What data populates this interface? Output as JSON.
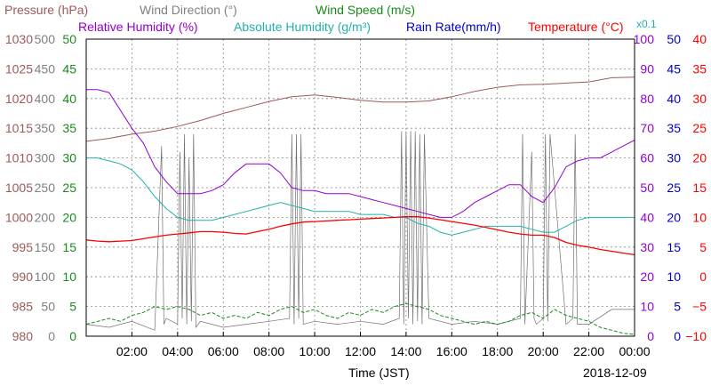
{
  "chart_data": {
    "type": "line",
    "date_label": "2018-12-09",
    "xlabel": "Time (JST)",
    "x_ticks": [
      "02:00",
      "04:00",
      "06:00",
      "08:00",
      "10:00",
      "12:00",
      "14:00",
      "16:00",
      "18:00",
      "20:00",
      "22:00",
      "00:00"
    ],
    "xlim": [
      "00:00",
      "24:00"
    ],
    "legend": [
      {
        "key": "pressure",
        "label": "Pressure (hPa)",
        "color": "#9b5a5a"
      },
      {
        "key": "wind_dir",
        "label": "Wind Direction (°)",
        "color": "#808080"
      },
      {
        "key": "wind_speed",
        "label": "Wind Speed (m/s)",
        "color": "#1a8a1a"
      },
      {
        "key": "rh",
        "label": "Relative Humidity (%)",
        "color": "#9400d3"
      },
      {
        "key": "ah",
        "label": "Absolute Humidity (g/m³)",
        "color": "#20b2aa"
      },
      {
        "key": "rain",
        "label": "Rain Rate(mm/h)",
        "color": "#0000cd"
      },
      {
        "key": "temp",
        "label": "Temperature (°C)",
        "color": "#ff0000"
      }
    ],
    "ah_scale_note": "x0.1",
    "axes": {
      "pressure": {
        "min": 980,
        "max": 1030,
        "step": 5,
        "ticks": [
          "1030",
          "1025",
          "1020",
          "1015",
          "1010",
          "1005",
          "1000",
          "995",
          "990",
          "985",
          "980"
        ],
        "color": "#9b5a5a"
      },
      "wind_dir": {
        "min": 0,
        "max": 500,
        "step": 50,
        "ticks": [
          "500",
          "450",
          "400",
          "350",
          "300",
          "250",
          "200",
          "150",
          "100",
          "50",
          "0"
        ],
        "color": "#808080"
      },
      "wind_speed": {
        "min": 0,
        "max": 50,
        "step": 5,
        "ticks": [
          "50",
          "45",
          "40",
          "35",
          "30",
          "25",
          "20",
          "15",
          "10",
          "5",
          "0"
        ],
        "color": "#1a8a1a"
      },
      "rh": {
        "min": 0,
        "max": 100,
        "step": 10,
        "ticks": [
          "100",
          "90",
          "80",
          "70",
          "60",
          "50",
          "40",
          "30",
          "20",
          "10",
          "0"
        ],
        "color": "#9400d3"
      },
      "rain": {
        "min": 0,
        "max": 50,
        "step": 5,
        "ticks": [
          "50",
          "45",
          "40",
          "35",
          "30",
          "25",
          "20",
          "15",
          "10",
          "5",
          "0"
        ],
        "color": "#0000cd"
      },
      "temp": {
        "min": -10,
        "max": 40,
        "step": 5,
        "ticks": [
          "40",
          "35",
          "30",
          "25",
          "20",
          "15",
          "10",
          "5",
          "0",
          "−5",
          "−10"
        ],
        "color": "#ff0000"
      }
    },
    "series": [
      {
        "key": "pressure",
        "name": "Pressure (hPa)",
        "axis": "pressure",
        "x": [
          0,
          1,
          2,
          3,
          4,
          5,
          6,
          7,
          8,
          9,
          10,
          11,
          12,
          13,
          14,
          15,
          16,
          17,
          18,
          19,
          20,
          21,
          22,
          23,
          24
        ],
        "y": [
          1012.8,
          1013.3,
          1014.0,
          1014.5,
          1015.3,
          1016.3,
          1017.5,
          1018.5,
          1019.5,
          1020.3,
          1020.6,
          1020.2,
          1019.7,
          1019.4,
          1019.4,
          1019.6,
          1020.3,
          1021.2,
          1021.9,
          1022.3,
          1022.4,
          1022.6,
          1022.8,
          1023.5,
          1023.6
        ]
      },
      {
        "key": "wind_dir",
        "name": "Wind Direction (°)",
        "axis": "wind_dir",
        "x": [
          0,
          1,
          2,
          3,
          3.3,
          3.4,
          3.5,
          4,
          4.1,
          4.2,
          4.3,
          4.4,
          4.5,
          4.6,
          4.7,
          4.8,
          4.9,
          5,
          6,
          7,
          8,
          8.9,
          9,
          9.1,
          9.2,
          9.3,
          9.4,
          9.5,
          10,
          11,
          12,
          13,
          13.7,
          13.8,
          13.9,
          14,
          14.1,
          14.2,
          14.3,
          14.4,
          14.5,
          14.6,
          14.7,
          14.8,
          15,
          16,
          17,
          18,
          19,
          19.1,
          19.2,
          19.5,
          19.6,
          19.7,
          20,
          20.1,
          20.2,
          20.3,
          21,
          21.3,
          21.4,
          21.5,
          22,
          23,
          24
        ],
        "y": [
          20,
          15,
          25,
          10,
          320,
          20,
          30,
          20,
          310,
          30,
          340,
          20,
          300,
          25,
          340,
          15,
          20,
          25,
          15,
          20,
          25,
          30,
          340,
          20,
          340,
          30,
          340,
          20,
          25,
          20,
          25,
          20,
          30,
          345,
          20,
          345,
          30,
          345,
          20,
          345,
          25,
          340,
          20,
          340,
          30,
          20,
          25,
          20,
          30,
          340,
          20,
          310,
          30,
          20,
          30,
          340,
          25,
          340,
          20,
          30,
          340,
          20,
          20,
          45,
          45
        ]
      },
      {
        "key": "wind_speed",
        "name": "Wind Speed (m/s)",
        "axis": "wind_speed",
        "x": [
          0,
          0.5,
          1,
          1.5,
          2,
          2.5,
          3,
          3.5,
          4,
          4.5,
          5,
          5.5,
          6,
          6.5,
          7,
          7.5,
          8,
          8.5,
          9,
          9.5,
          10,
          10.5,
          11,
          11.5,
          12,
          12.5,
          13,
          13.5,
          14,
          14.5,
          15,
          15.5,
          16,
          16.5,
          17,
          17.5,
          18,
          18.5,
          19,
          19.5,
          20,
          20.5,
          21,
          21.5,
          22,
          22.5,
          23,
          23.5,
          24
        ],
        "y": [
          2.0,
          2.5,
          3.0,
          2.5,
          3.5,
          4.0,
          5.0,
          4.5,
          5.0,
          4.5,
          3.5,
          4.0,
          3.0,
          3.5,
          3.0,
          4.0,
          3.5,
          4.5,
          5.0,
          4.0,
          4.5,
          3.5,
          3.0,
          4.0,
          3.5,
          4.5,
          4.0,
          5.0,
          5.5,
          5.0,
          4.5,
          3.5,
          3.0,
          2.5,
          2.0,
          2.5,
          2.0,
          2.5,
          3.5,
          4.0,
          3.0,
          4.5,
          3.5,
          3.0,
          2.5,
          1.5,
          1.0,
          0.5,
          0.3
        ]
      },
      {
        "key": "rh",
        "name": "Relative Humidity (%)",
        "axis": "rh",
        "x": [
          0,
          0.5,
          1,
          1.5,
          2,
          2.5,
          3,
          3.5,
          4,
          4.5,
          5,
          5.5,
          6,
          6.5,
          7,
          7.5,
          8,
          8.5,
          9,
          9.5,
          10,
          10.5,
          11,
          11.5,
          12,
          12.5,
          13,
          13.5,
          14,
          14.5,
          15,
          15.5,
          16,
          16.5,
          17,
          17.5,
          18,
          18.5,
          19,
          19.5,
          20,
          20.5,
          21,
          21.5,
          22,
          22.5,
          23,
          23.5,
          24
        ],
        "y": [
          83,
          83,
          82,
          76,
          70,
          65,
          57,
          52,
          48,
          48,
          48,
          49,
          51,
          55,
          58,
          58,
          58,
          55,
          50,
          49,
          49,
          48,
          48,
          48,
          47,
          46,
          45,
          44,
          43,
          42,
          41,
          40,
          40,
          42,
          45,
          47,
          49,
          51,
          51,
          47,
          45,
          50,
          57,
          59,
          60,
          60,
          62,
          64,
          66
        ]
      },
      {
        "key": "ah",
        "name": "Absolute Humidity (g/m³)",
        "axis": "rh",
        "x": [
          0,
          0.5,
          1,
          1.5,
          2,
          2.5,
          3,
          3.5,
          4,
          4.5,
          5,
          5.5,
          6,
          6.5,
          7,
          7.5,
          8,
          8.5,
          9,
          9.5,
          10,
          10.5,
          11,
          11.5,
          12,
          12.5,
          13,
          13.5,
          14,
          14.5,
          15,
          15.5,
          16,
          16.5,
          17,
          17.5,
          18,
          18.5,
          19,
          19.5,
          20,
          20.5,
          21,
          21.5,
          22,
          22.5,
          23,
          23.5,
          24
        ],
        "y": [
          60,
          60,
          59,
          58,
          56,
          52,
          47,
          43,
          40,
          39,
          39,
          39,
          40,
          41,
          42,
          43,
          44,
          45,
          44,
          43,
          42,
          42,
          42,
          42,
          41,
          41,
          41,
          40,
          40,
          38,
          37,
          35,
          34,
          35,
          36,
          37,
          37,
          37,
          37,
          36,
          35,
          35,
          37,
          39,
          40,
          40,
          40,
          40,
          40
        ]
      },
      {
        "key": "rain",
        "name": "Rain Rate(mm/h)",
        "axis": "rain",
        "x": [
          0,
          24
        ],
        "y": [
          0,
          0
        ]
      },
      {
        "key": "temp",
        "name": "Temperature (°C)",
        "axis": "temp",
        "x": [
          0,
          0.5,
          1,
          1.5,
          2,
          2.5,
          3,
          3.5,
          4,
          4.5,
          5,
          5.5,
          6,
          6.5,
          7,
          7.5,
          8,
          8.5,
          9,
          9.5,
          10,
          10.5,
          11,
          11.5,
          12,
          12.5,
          13,
          13.5,
          14,
          14.5,
          15,
          15.5,
          16,
          16.5,
          17,
          17.5,
          18,
          18.5,
          19,
          19.5,
          20,
          20.5,
          21,
          21.5,
          22,
          22.5,
          23,
          23.5,
          24
        ],
        "y": [
          6.2,
          6.0,
          5.9,
          6.0,
          6.1,
          6.4,
          6.7,
          7.0,
          7.2,
          7.4,
          7.6,
          7.6,
          7.5,
          7.3,
          7.2,
          7.6,
          8.0,
          8.5,
          8.9,
          9.2,
          9.3,
          9.4,
          9.5,
          9.6,
          9.7,
          9.8,
          9.9,
          10.0,
          10.1,
          10.1,
          9.9,
          9.6,
          9.3,
          9.0,
          8.7,
          8.3,
          7.9,
          7.5,
          7.2,
          7.0,
          7.0,
          6.6,
          5.8,
          5.3,
          5.0,
          4.6,
          4.3,
          4.0,
          3.7
        ]
      }
    ]
  }
}
